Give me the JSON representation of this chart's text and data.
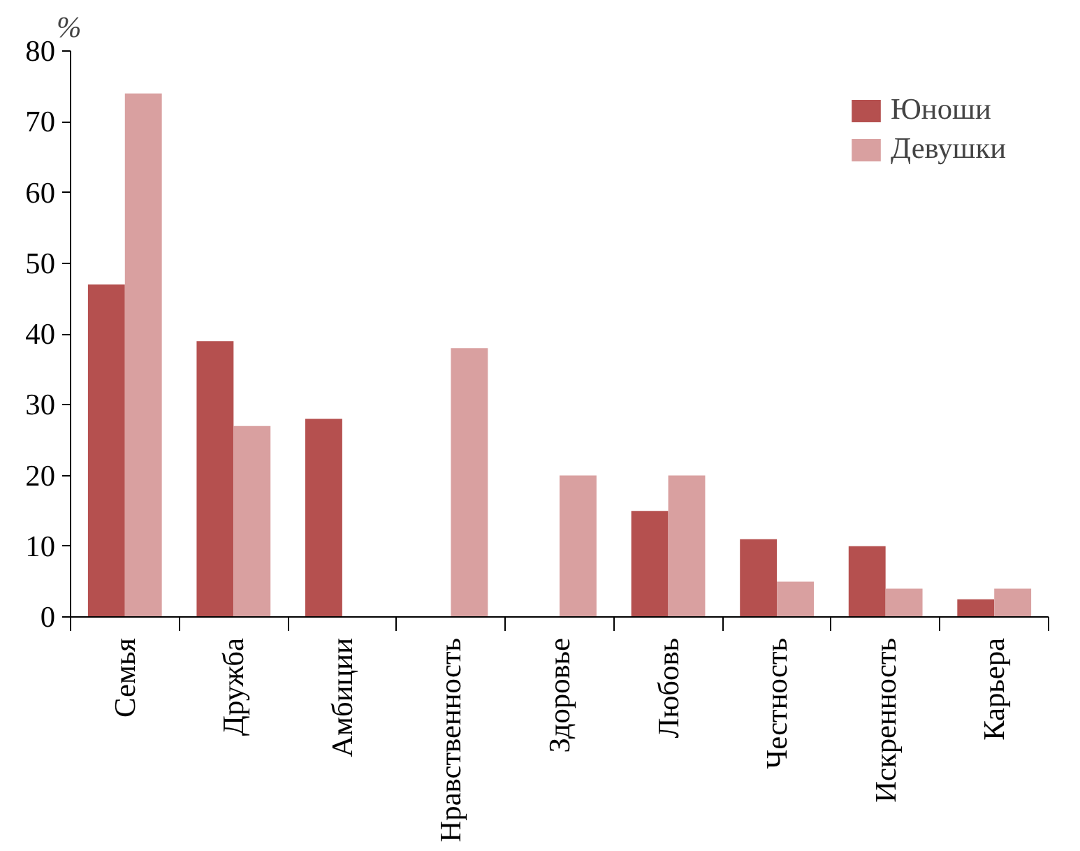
{
  "chart_data": {
    "type": "bar",
    "ylabel": "%",
    "categories": [
      "Семья",
      "Дружба",
      "Амбиции",
      "Нравственность",
      "Здоровье",
      "Любовь",
      "Честность",
      "Искренность",
      "Карьера"
    ],
    "series": [
      {
        "name": "Юноши",
        "color": "#b5504f",
        "values": [
          47,
          39,
          28,
          null,
          null,
          15,
          11,
          10,
          2.5
        ]
      },
      {
        "name": "Девушки",
        "color": "#d9a0a0",
        "values": [
          74,
          27,
          null,
          38,
          20,
          20,
          5,
          4,
          4
        ]
      }
    ],
    "ylim": [
      0,
      80
    ],
    "yticks": [
      0,
      10,
      20,
      30,
      40,
      50,
      60,
      70,
      80
    ],
    "grid": false,
    "legend": "top right"
  }
}
